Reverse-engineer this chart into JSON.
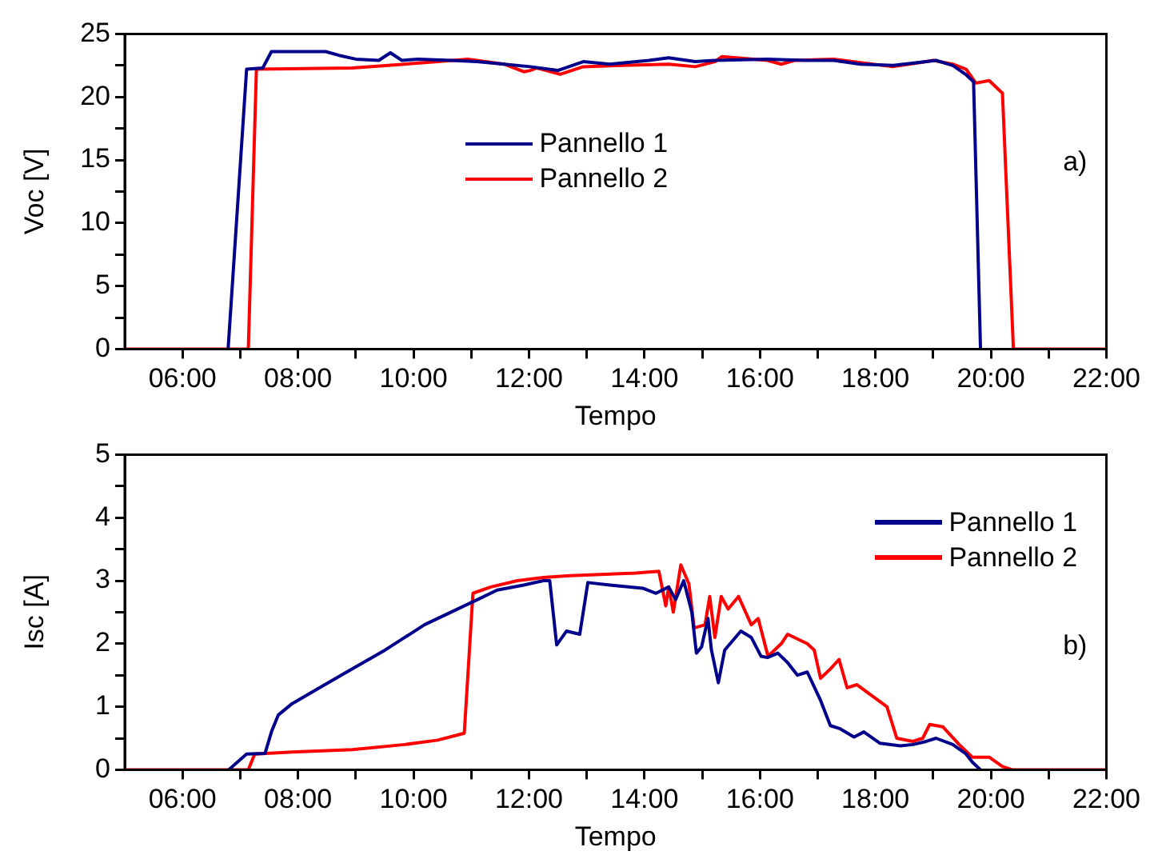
{
  "chart_data": [
    {
      "type": "line",
      "xlabel": "Tempo",
      "ylabel": "Voc [V]",
      "annotations": [
        "a)"
      ],
      "legend": "top",
      "grid": false,
      "marker": "none",
      "line_style": "solid",
      "xlim": [
        5,
        22
      ],
      "xticks": [
        {
          "value": 6,
          "label": "06:00"
        },
        {
          "value": 7,
          "label": null
        },
        {
          "value": 8,
          "label": "08:00"
        },
        {
          "value": 9,
          "label": null
        },
        {
          "value": 10,
          "label": "10:00"
        },
        {
          "value": 11,
          "label": null
        },
        {
          "value": 12,
          "label": "12:00"
        },
        {
          "value": 13,
          "label": null
        },
        {
          "value": 14,
          "label": "14:00"
        },
        {
          "value": 15,
          "label": null
        },
        {
          "value": 16,
          "label": "16:00"
        },
        {
          "value": 17,
          "label": null
        },
        {
          "value": 18,
          "label": "18:00"
        },
        {
          "value": 19,
          "label": null
        },
        {
          "value": 20,
          "label": "20:00"
        },
        {
          "value": 21,
          "label": null
        },
        {
          "value": 22,
          "label": "22:00"
        }
      ],
      "ylim": [
        0,
        25
      ],
      "yticks": [
        0,
        {
          "value": 2.5,
          "label": null
        },
        5,
        {
          "value": 7.5,
          "label": null
        },
        10,
        {
          "value": 12.5,
          "label": null
        },
        15,
        {
          "value": 17.5,
          "label": null
        },
        20,
        {
          "value": 22.5,
          "label": null
        },
        25
      ],
      "series": [
        {
          "name": "Pannello 1",
          "color": "#00008b",
          "x": [
            6.79,
            7.11,
            7.39,
            7.54,
            8.48,
            8.71,
            9.0,
            9.4,
            9.6,
            9.8,
            10.08,
            10.65,
            11.1,
            11.57,
            12.02,
            12.5,
            12.94,
            13.4,
            14.08,
            14.42,
            14.88,
            15.22,
            16.13,
            16.8,
            17.28,
            17.74,
            18.31,
            18.88,
            19.05,
            19.34,
            19.56,
            19.7,
            19.82
          ],
          "values": [
            0,
            22.2,
            22.3,
            23.6,
            23.6,
            23.3,
            23.0,
            22.9,
            23.5,
            22.9,
            23.0,
            22.9,
            22.8,
            22.6,
            22.4,
            22.1,
            22.8,
            22.6,
            22.9,
            23.1,
            22.8,
            22.9,
            23.0,
            22.9,
            22.9,
            22.6,
            22.5,
            22.8,
            22.9,
            22.5,
            21.8,
            21.2,
            0
          ]
        },
        {
          "name": "Pannello 2",
          "color": "#ff0000",
          "x": [
            5,
            7.14,
            7.28,
            8.94,
            9.85,
            10.42,
            10.94,
            11.57,
            11.91,
            12.02,
            12.14,
            12.54,
            12.94,
            13.63,
            14.42,
            14.88,
            15.22,
            15.34,
            16.13,
            16.37,
            16.6,
            17.28,
            18.3,
            18.88,
            19.0,
            19.34,
            19.57,
            19.74,
            19.97,
            20.2,
            20.39,
            22
          ],
          "values": [
            0,
            0,
            22.2,
            22.3,
            22.6,
            22.8,
            23.0,
            22.6,
            22.0,
            22.1,
            22.3,
            21.8,
            22.4,
            22.5,
            22.6,
            22.4,
            22.8,
            23.2,
            22.9,
            22.6,
            22.9,
            23.0,
            22.4,
            22.8,
            22.9,
            22.6,
            22.2,
            21.1,
            21.3,
            20.3,
            0,
            0
          ]
        }
      ]
    },
    {
      "type": "line",
      "xlabel": "Tempo",
      "ylabel": "Isc [A]",
      "annotations": [
        "b)"
      ],
      "legend": "top right",
      "grid": false,
      "marker": "none",
      "line_style": "solid",
      "xlim": [
        5,
        22
      ],
      "xticks": [
        {
          "value": 6,
          "label": "06:00"
        },
        {
          "value": 7,
          "label": null
        },
        {
          "value": 8,
          "label": "08:00"
        },
        {
          "value": 9,
          "label": null
        },
        {
          "value": 10,
          "label": "10:00"
        },
        {
          "value": 11,
          "label": null
        },
        {
          "value": 12,
          "label": "12:00"
        },
        {
          "value": 13,
          "label": null
        },
        {
          "value": 14,
          "label": "14:00"
        },
        {
          "value": 15,
          "label": null
        },
        {
          "value": 16,
          "label": "16:00"
        },
        {
          "value": 17,
          "label": null
        },
        {
          "value": 18,
          "label": "18:00"
        },
        {
          "value": 19,
          "label": null
        },
        {
          "value": 20,
          "label": "20:00"
        },
        {
          "value": 21,
          "label": null
        },
        {
          "value": 22,
          "label": "22:00"
        }
      ],
      "ylim": [
        0,
        5
      ],
      "yticks": [
        0,
        {
          "value": 0.5,
          "label": null
        },
        1,
        {
          "value": 1.5,
          "label": null
        },
        2,
        {
          "value": 2.5,
          "label": null
        },
        3,
        {
          "value": 3.5,
          "label": null
        },
        4,
        {
          "value": 4.5,
          "label": null
        },
        5
      ],
      "series": [
        {
          "name": "Pannello 1",
          "color": "#00008b",
          "x": [
            6.8,
            7.11,
            7.43,
            7.54,
            7.66,
            7.9,
            8.37,
            8.94,
            9.51,
            9.85,
            10.19,
            10.65,
            11.11,
            11.45,
            11.91,
            12.25,
            12.36,
            12.48,
            12.65,
            12.88,
            13.02,
            13.4,
            13.97,
            14.2,
            14.42,
            14.54,
            14.68,
            14.82,
            14.9,
            14.99,
            15.1,
            15.16,
            15.28,
            15.39,
            15.67,
            15.85,
            16.02,
            16.13,
            16.31,
            16.48,
            16.65,
            16.82,
            17.05,
            17.22,
            17.39,
            17.63,
            17.8,
            18.08,
            18.43,
            18.65,
            18.88,
            19.05,
            19.34,
            19.57,
            19.68,
            19.82
          ],
          "values": [
            0,
            0.25,
            0.26,
            0.6,
            0.87,
            1.05,
            1.3,
            1.6,
            1.9,
            2.1,
            2.3,
            2.5,
            2.7,
            2.85,
            2.93,
            3.0,
            3.0,
            1.98,
            2.2,
            2.15,
            2.97,
            2.93,
            2.88,
            2.8,
            2.9,
            2.7,
            3.0,
            2.5,
            1.85,
            1.95,
            2.4,
            1.9,
            1.38,
            1.9,
            2.2,
            2.1,
            1.8,
            1.78,
            1.85,
            1.7,
            1.5,
            1.55,
            1.1,
            0.7,
            0.65,
            0.52,
            0.6,
            0.42,
            0.38,
            0.4,
            0.45,
            0.5,
            0.4,
            0.25,
            0.12,
            0
          ]
        },
        {
          "name": "Pannello 2",
          "color": "#ff0000",
          "x": [
            5,
            7.14,
            7.25,
            7.9,
            8.94,
            9.85,
            10.42,
            10.88,
            11.03,
            11.34,
            11.8,
            12.25,
            12.71,
            13.85,
            14.25,
            14.37,
            14.42,
            14.5,
            14.63,
            14.77,
            14.86,
            15.05,
            15.13,
            15.22,
            15.33,
            15.45,
            15.63,
            15.85,
            15.97,
            16.14,
            16.37,
            16.48,
            16.82,
            16.94,
            17.05,
            17.22,
            17.37,
            17.51,
            17.68,
            18.2,
            18.37,
            18.65,
            18.82,
            18.94,
            19.17,
            19.45,
            19.68,
            19.97,
            20.2,
            20.37,
            22
          ],
          "values": [
            0,
            0,
            0.25,
            0.28,
            0.32,
            0.4,
            0.47,
            0.58,
            2.8,
            2.9,
            3.0,
            3.05,
            3.08,
            3.12,
            3.15,
            2.6,
            2.9,
            2.5,
            3.25,
            2.95,
            2.25,
            2.3,
            2.75,
            2.1,
            2.75,
            2.55,
            2.75,
            2.3,
            2.4,
            1.8,
            2.0,
            2.15,
            2.0,
            1.9,
            1.45,
            1.6,
            1.75,
            1.3,
            1.35,
            1.0,
            0.5,
            0.45,
            0.5,
            0.72,
            0.68,
            0.4,
            0.2,
            0.2,
            0.05,
            0,
            0
          ]
        }
      ]
    }
  ]
}
